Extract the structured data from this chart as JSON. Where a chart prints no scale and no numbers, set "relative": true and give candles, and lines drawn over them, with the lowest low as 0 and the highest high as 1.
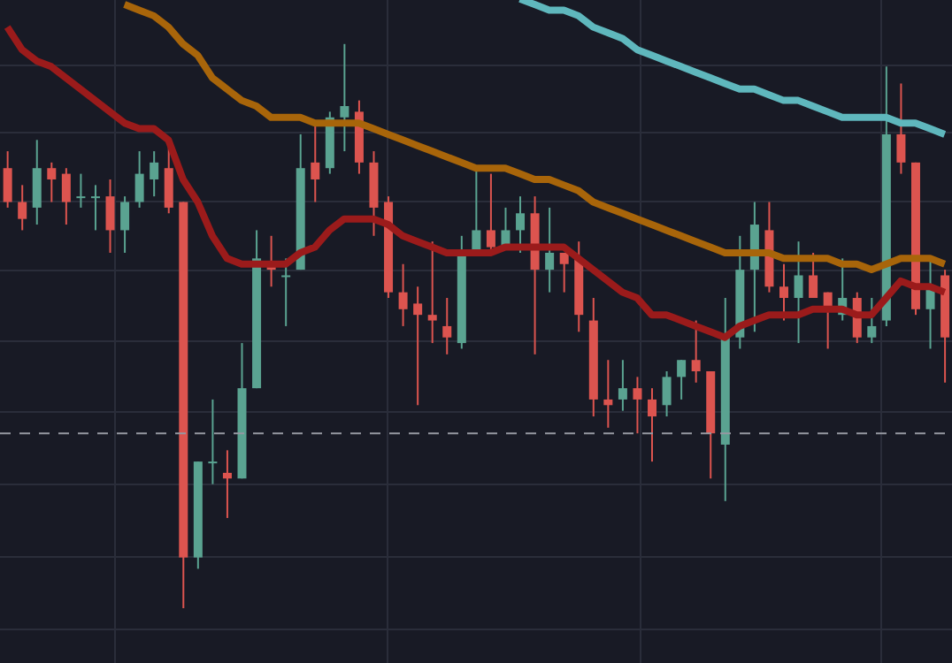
{
  "chart_data": {
    "type": "candlestick",
    "relative": true,
    "grid": true,
    "categories": [
      null,
      null,
      null,
      null,
      null,
      null,
      null,
      null,
      null,
      null,
      null,
      null,
      null,
      null,
      null,
      null,
      null,
      null,
      null,
      null,
      null,
      null,
      null,
      null,
      null,
      null,
      null,
      null,
      null,
      null,
      null,
      null,
      null,
      null,
      null,
      null,
      null,
      null,
      null,
      null,
      null,
      null,
      null,
      null,
      null,
      null,
      null,
      null,
      null,
      null,
      null,
      null,
      null,
      null,
      null,
      null,
      null,
      null,
      null,
      null,
      null,
      null,
      null,
      null,
      null
    ],
    "ohlc": [
      [
        0.78,
        0.81,
        0.71,
        0.72
      ],
      [
        0.72,
        0.75,
        0.67,
        0.69
      ],
      [
        0.71,
        0.83,
        0.68,
        0.78
      ],
      [
        0.78,
        0.79,
        0.72,
        0.76
      ],
      [
        0.77,
        0.78,
        0.68,
        0.72
      ],
      [
        0.73,
        0.77,
        0.71,
        0.73
      ],
      [
        0.73,
        0.75,
        0.67,
        0.73
      ],
      [
        0.73,
        0.76,
        0.63,
        0.67
      ],
      [
        0.67,
        0.73,
        0.63,
        0.72
      ],
      [
        0.72,
        0.81,
        0.71,
        0.77
      ],
      [
        0.76,
        0.81,
        0.73,
        0.79
      ],
      [
        0.78,
        0.82,
        0.7,
        0.71
      ],
      [
        0.72,
        0.72,
        0,
        0.09
      ],
      [
        0.09,
        0.26,
        0.07,
        0.26
      ],
      [
        0.26,
        0.37,
        0.22,
        0.26
      ],
      [
        0.24,
        0.28,
        0.16,
        0.23
      ],
      [
        0.23,
        0.47,
        0.23,
        0.39
      ],
      [
        0.39,
        0.67,
        0.39,
        0.62
      ],
      [
        0.61,
        0.66,
        0.57,
        0.6
      ],
      [
        0.59,
        0.62,
        0.5,
        0.59
      ],
      [
        0.6,
        0.84,
        0.6,
        0.78
      ],
      [
        0.79,
        0.86,
        0.72,
        0.76
      ],
      [
        0.78,
        0.88,
        0.77,
        0.87
      ],
      [
        0.87,
        1.0,
        0.81,
        0.89
      ],
      [
        0.88,
        0.9,
        0.77,
        0.79
      ],
      [
        0.79,
        0.81,
        0.66,
        0.71
      ],
      [
        0.72,
        0.73,
        0.55,
        0.56
      ],
      [
        0.56,
        0.61,
        0.5,
        0.53
      ],
      [
        0.54,
        0.57,
        0.36,
        0.52
      ],
      [
        0.52,
        0.65,
        0.47,
        0.51
      ],
      [
        0.5,
        0.55,
        0.45,
        0.48
      ],
      [
        0.47,
        0.66,
        0.46,
        0.63
      ],
      [
        0.63,
        0.78,
        0.63,
        0.67
      ],
      [
        0.67,
        0.77,
        0.63,
        0.64
      ],
      [
        0.64,
        0.71,
        0.64,
        0.67
      ],
      [
        0.67,
        0.73,
        0.63,
        0.7
      ],
      [
        0.7,
        0.73,
        0.45,
        0.6
      ],
      [
        0.6,
        0.71,
        0.56,
        0.63
      ],
      [
        0.63,
        0.63,
        0.56,
        0.61
      ],
      [
        0.62,
        0.65,
        0.49,
        0.52
      ],
      [
        0.51,
        0.55,
        0.34,
        0.37
      ],
      [
        0.37,
        0.44,
        0.32,
        0.36
      ],
      [
        0.37,
        0.44,
        0.35,
        0.39
      ],
      [
        0.39,
        0.41,
        0.31,
        0.37
      ],
      [
        0.37,
        0.39,
        0.26,
        0.34
      ],
      [
        0.36,
        0.42,
        0.34,
        0.41
      ],
      [
        0.41,
        0.44,
        0.37,
        0.44
      ],
      [
        0.44,
        0.51,
        0.4,
        0.42
      ],
      [
        0.42,
        0.42,
        0.23,
        0.31
      ],
      [
        0.29,
        0.55,
        0.19,
        0.48
      ],
      [
        0.48,
        0.66,
        0.46,
        0.6
      ],
      [
        0.6,
        0.72,
        0.49,
        0.68
      ],
      [
        0.67,
        0.72,
        0.56,
        0.57
      ],
      [
        0.57,
        0.61,
        0.51,
        0.55
      ],
      [
        0.55,
        0.65,
        0.47,
        0.59
      ],
      [
        0.59,
        0.63,
        0.55,
        0.55
      ],
      [
        0.56,
        0.56,
        0.46,
        0.53
      ],
      [
        0.52,
        0.62,
        0.51,
        0.55
      ],
      [
        0.55,
        0.56,
        0.47,
        0.48
      ],
      [
        0.48,
        0.55,
        0.47,
        0.5
      ],
      [
        0.51,
        0.96,
        0.5,
        0.84
      ],
      [
        0.84,
        0.93,
        0.77,
        0.79
      ],
      [
        0.79,
        0.79,
        0.52,
        0.53
      ],
      [
        0.53,
        0.62,
        0.46,
        0.57
      ],
      [
        0.59,
        0.6,
        0.4,
        0.48
      ]
    ],
    "colors": [
      "#dc544f",
      "#dc544f",
      "#5aa391",
      "#dc544f",
      "#dc544f",
      "#5aa391",
      "#5aa391",
      "#dc544f",
      "#5aa391",
      "#5aa391",
      "#5aa391",
      "#dc544f",
      "#dc544f",
      "#5aa391",
      "#5aa391",
      "#dc544f",
      "#5aa391",
      "#5aa391",
      "#dc544f",
      "#5aa391",
      "#5aa391",
      "#dc544f",
      "#5aa391",
      "#5aa391",
      "#dc544f",
      "#dc544f",
      "#dc544f",
      "#dc544f",
      "#dc544f",
      "#dc544f",
      "#dc544f",
      "#5aa391",
      "#5aa391",
      "#dc544f",
      "#5aa391",
      "#5aa391",
      "#dc544f",
      "#5aa391",
      "#dc544f",
      "#dc544f",
      "#dc544f",
      "#dc544f",
      "#5aa391",
      "#dc544f",
      "#dc544f",
      "#5aa391",
      "#5aa391",
      "#dc544f",
      "#dc544f",
      "#5aa391",
      "#5aa391",
      "#5aa391",
      "#dc544f",
      "#dc544f",
      "#5aa391",
      "#dc544f",
      "#dc544f",
      "#5aa391",
      "#dc544f",
      "#5aa391",
      "#5aa391",
      "#dc544f",
      "#dc544f",
      "#5aa391",
      "#dc544f"
    ],
    "series": [
      {
        "type": "line",
        "color": "#9b1b1b",
        "values": [
          1.03,
          0.99,
          0.97,
          0.96,
          0.94,
          0.92,
          0.9,
          0.88,
          0.86,
          0.85,
          0.85,
          0.83,
          0.76,
          0.72,
          0.66,
          0.62,
          0.61,
          0.61,
          0.61,
          0.61,
          0.63,
          0.64,
          0.67,
          0.69,
          0.69,
          0.69,
          0.68,
          0.66,
          0.65,
          0.64,
          0.63,
          0.63,
          0.63,
          0.63,
          0.64,
          0.64,
          0.64,
          0.64,
          0.64,
          0.62,
          0.6,
          0.58,
          0.56,
          0.55,
          0.52,
          0.52,
          0.51,
          0.5,
          0.49,
          0.48,
          0.5,
          0.51,
          0.52,
          0.52,
          0.52,
          0.53,
          0.53,
          0.53,
          0.52,
          0.52,
          0.55,
          0.58,
          0.57,
          0.57,
          0.56
        ]
      },
      {
        "type": "line",
        "color": "#a8650a",
        "values": [
          null,
          null,
          null,
          null,
          null,
          null,
          null,
          null,
          1.07,
          1.06,
          1.05,
          1.03,
          1.0,
          0.98,
          0.94,
          0.92,
          0.9,
          0.89,
          0.87,
          0.87,
          0.87,
          0.86,
          0.86,
          0.86,
          0.86,
          0.85,
          0.84,
          0.83,
          0.82,
          0.81,
          0.8,
          0.79,
          0.78,
          0.78,
          0.78,
          0.77,
          0.76,
          0.76,
          0.75,
          0.74,
          0.72,
          0.71,
          0.7,
          0.69,
          0.68,
          0.67,
          0.66,
          0.65,
          0.64,
          0.63,
          0.63,
          0.63,
          0.63,
          0.62,
          0.62,
          0.62,
          0.62,
          0.61,
          0.61,
          0.6,
          0.61,
          0.62,
          0.62,
          0.62,
          0.61
        ]
      },
      {
        "type": "line",
        "color": "#5fb7bd",
        "values": [
          null,
          null,
          null,
          null,
          null,
          null,
          null,
          null,
          null,
          null,
          null,
          null,
          null,
          null,
          null,
          null,
          null,
          null,
          null,
          null,
          null,
          null,
          null,
          null,
          null,
          null,
          null,
          null,
          null,
          null,
          null,
          null,
          null,
          null,
          null,
          1.08,
          1.07,
          1.06,
          1.06,
          1.05,
          1.03,
          1.02,
          1.01,
          0.99,
          0.98,
          0.97,
          0.96,
          0.95,
          0.94,
          0.93,
          0.92,
          0.92,
          0.91,
          0.9,
          0.9,
          0.89,
          0.88,
          0.87,
          0.87,
          0.87,
          0.87,
          0.86,
          0.86,
          0.85,
          0.84
        ]
      }
    ],
    "ref_lines": [
      {
        "axis": "y",
        "value": 0.31,
        "color": "#9598a1",
        "line_style": "dashed"
      }
    ]
  }
}
